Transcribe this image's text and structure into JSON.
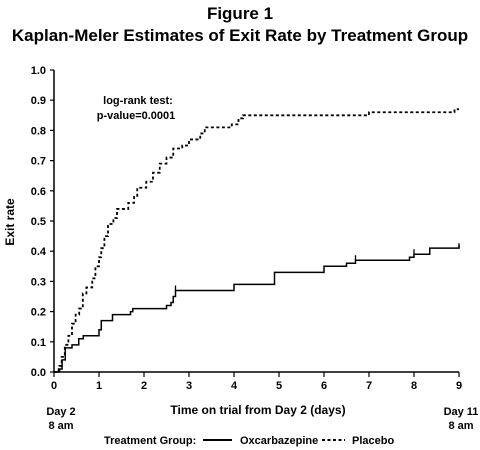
{
  "title_line1": "Figure 1",
  "title_line2": "Kaplan-Meler Estimates of Exit Rate by Treatment Group",
  "chart_data": {
    "type": "line",
    "step": true,
    "title": "Kaplan-Meler Estimates of Exit Rate by Treatment Group",
    "xlabel": "Time on trial from Day 2 (days)",
    "ylabel": "Exit rate",
    "xlim": [
      0,
      9
    ],
    "ylim": [
      0,
      1.0
    ],
    "xticks": [
      "0",
      "1",
      "2",
      "3",
      "4",
      "5",
      "6",
      "7",
      "8",
      "9"
    ],
    "yticks": [
      "0.0",
      "0.1",
      "0.2",
      "0.3",
      "0.4",
      "0.5",
      "0.6",
      "0.7",
      "0.8",
      "0.9",
      "1.0"
    ],
    "x_start_label": [
      "Day 2",
      "8 am"
    ],
    "x_end_label": [
      "Day 11",
      "8 am"
    ],
    "annotation": [
      "log-rank test:",
      "p-value=0.0001"
    ],
    "legend": {
      "title": "Treatment Group:",
      "entries": [
        {
          "label": "Oxcarbazepine",
          "style": "solid"
        },
        {
          "label": "Placebo",
          "style": "dotted"
        }
      ]
    },
    "series": [
      {
        "name": "Oxcarbazepine",
        "style": "solid",
        "points": [
          [
            0,
            0
          ],
          [
            0.1,
            0.01
          ],
          [
            0.18,
            0.04
          ],
          [
            0.25,
            0.08
          ],
          [
            0.4,
            0.09
          ],
          [
            0.55,
            0.11
          ],
          [
            0.65,
            0.12
          ],
          [
            1.0,
            0.14
          ],
          [
            1.05,
            0.17
          ],
          [
            1.3,
            0.19
          ],
          [
            1.7,
            0.2
          ],
          [
            1.75,
            0.21
          ],
          [
            2.5,
            0.22
          ],
          [
            2.6,
            0.23
          ],
          [
            2.65,
            0.25
          ],
          [
            2.7,
            0.27
          ],
          [
            4.0,
            0.29
          ],
          [
            4.9,
            0.33
          ],
          [
            6.0,
            0.35
          ],
          [
            6.5,
            0.36
          ],
          [
            6.7,
            0.37
          ],
          [
            7.9,
            0.38
          ],
          [
            8.0,
            0.39
          ],
          [
            8.35,
            0.41
          ],
          [
            9.0,
            0.42
          ]
        ],
        "censor_marks": [
          [
            2.7,
            0.27
          ],
          [
            6.7,
            0.37
          ],
          [
            8.0,
            0.39
          ],
          [
            9.0,
            0.41
          ]
        ]
      },
      {
        "name": "Placebo",
        "style": "dotted",
        "points": [
          [
            0,
            0
          ],
          [
            0.12,
            0.02
          ],
          [
            0.17,
            0.05
          ],
          [
            0.24,
            0.09
          ],
          [
            0.32,
            0.12
          ],
          [
            0.4,
            0.16
          ],
          [
            0.48,
            0.19
          ],
          [
            0.56,
            0.21
          ],
          [
            0.64,
            0.26
          ],
          [
            0.72,
            0.28
          ],
          [
            0.85,
            0.31
          ],
          [
            0.92,
            0.35
          ],
          [
            1.0,
            0.38
          ],
          [
            1.05,
            0.41
          ],
          [
            1.12,
            0.45
          ],
          [
            1.2,
            0.49
          ],
          [
            1.32,
            0.51
          ],
          [
            1.4,
            0.54
          ],
          [
            1.65,
            0.56
          ],
          [
            1.78,
            0.58
          ],
          [
            1.85,
            0.61
          ],
          [
            2.05,
            0.63
          ],
          [
            2.2,
            0.66
          ],
          [
            2.35,
            0.69
          ],
          [
            2.5,
            0.71
          ],
          [
            2.65,
            0.74
          ],
          [
            2.85,
            0.75
          ],
          [
            3.0,
            0.77
          ],
          [
            3.25,
            0.79
          ],
          [
            3.35,
            0.81
          ],
          [
            3.95,
            0.82
          ],
          [
            4.1,
            0.84
          ],
          [
            4.2,
            0.85
          ],
          [
            7.0,
            0.86
          ],
          [
            8.9,
            0.87
          ],
          [
            9.0,
            0.87
          ]
        ],
        "censor_marks": []
      }
    ]
  }
}
